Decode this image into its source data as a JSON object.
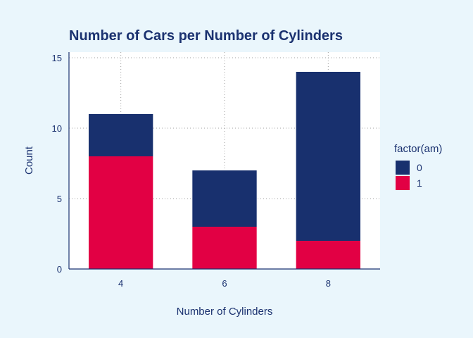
{
  "colors": {
    "background": "#EAF6FC",
    "panel": "#FFFFFF",
    "text": "#1B3270",
    "series_0": "#18306E",
    "series_1": "#E20044",
    "grid": "#A0A0A0"
  },
  "chart_data": {
    "type": "bar",
    "stacked": true,
    "title": "Number of Cars per Number of Cylinders",
    "xlabel": "Number of Cylinders",
    "ylabel": "Count",
    "categories": [
      "4",
      "6",
      "8"
    ],
    "series": [
      {
        "name": "0",
        "color": "#18306E",
        "values": [
          3,
          4,
          12
        ]
      },
      {
        "name": "1",
        "color": "#E20044",
        "values": [
          8,
          3,
          2
        ]
      }
    ],
    "ylim": [
      0,
      15
    ],
    "yticks": [
      0,
      5,
      10,
      15
    ],
    "legend": {
      "title": "factor(am)",
      "position": "right"
    },
    "grid": "dotted"
  }
}
